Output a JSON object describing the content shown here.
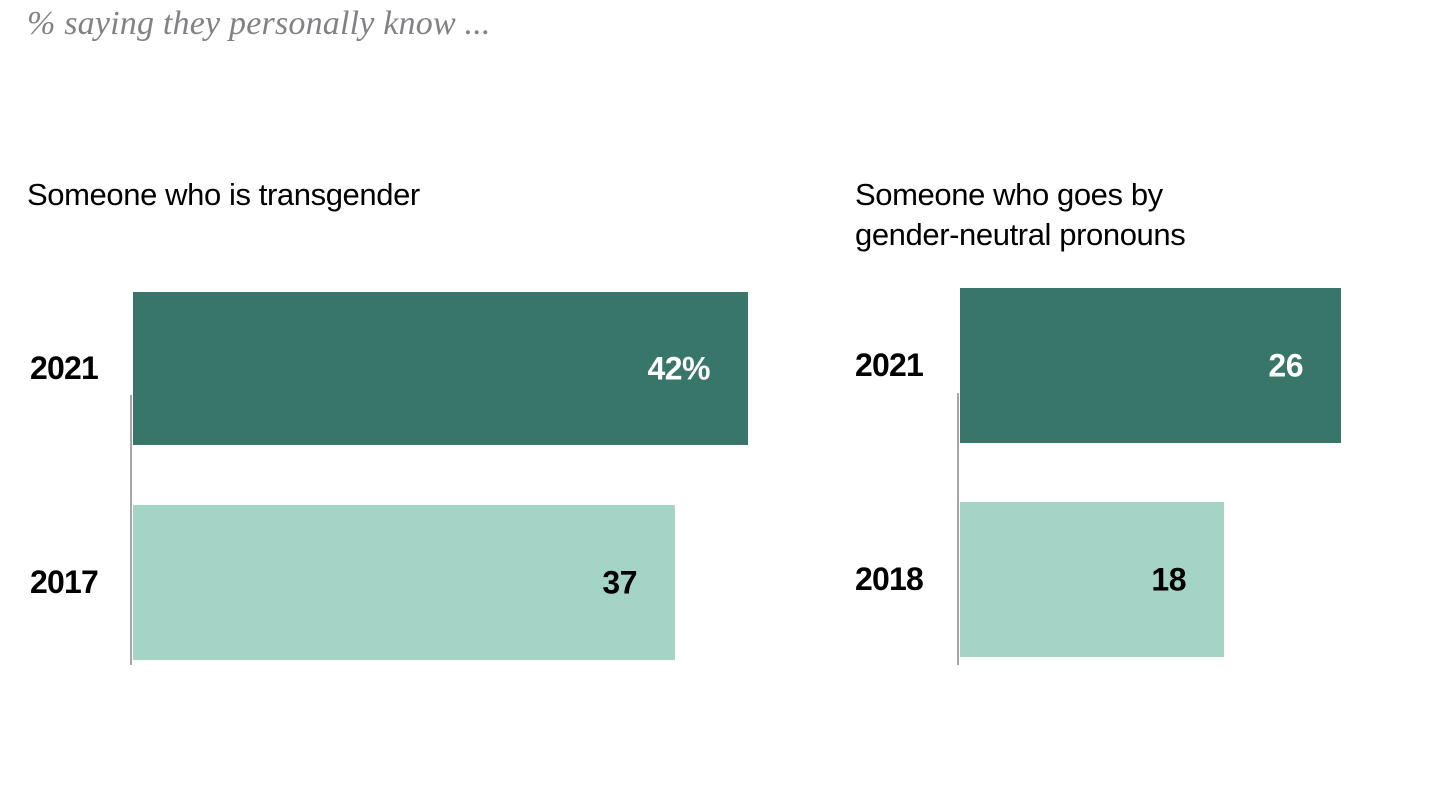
{
  "title": "% saying they personally know ...",
  "colors": {
    "bar_dark": "#39766a",
    "bar_light": "#a3d4c6",
    "axis_line": "#a6a6a6",
    "title_gray": "#808285",
    "heading_black": "#000000",
    "value_on_dark": "#ffffff",
    "value_on_light": "#000000"
  },
  "charts": [
    {
      "heading_lines": [
        "Someone who is transgender"
      ],
      "rows": [
        {
          "year": "2021",
          "value": 42,
          "value_label": "42%",
          "shade": "dark"
        },
        {
          "year": "2017",
          "value": 37,
          "value_label": "37",
          "shade": "light"
        }
      ]
    },
    {
      "heading_lines": [
        "Someone who goes by",
        "gender-neutral pronouns"
      ],
      "rows": [
        {
          "year": "2021",
          "value": 26,
          "value_label": "26",
          "shade": "dark"
        },
        {
          "year": "2018",
          "value": 18,
          "value_label": "18",
          "shade": "light"
        }
      ]
    }
  ],
  "chart_data": [
    {
      "type": "bar",
      "orientation": "horizontal",
      "title": "Someone who is transgender",
      "categories": [
        "2021",
        "2017"
      ],
      "values": [
        42,
        37
      ],
      "value_labels": [
        "42%",
        "37"
      ],
      "xlim": [
        0,
        42
      ],
      "grid": false,
      "legend": false,
      "bar_colors": [
        "#39766a",
        "#a3d4c6"
      ]
    },
    {
      "type": "bar",
      "orientation": "horizontal",
      "title": "Someone who goes by gender-neutral pronouns",
      "categories": [
        "2021",
        "2018"
      ],
      "values": [
        26,
        18
      ],
      "value_labels": [
        "26",
        "18"
      ],
      "xlim": [
        0,
        42
      ],
      "grid": false,
      "legend": false,
      "bar_colors": [
        "#39766a",
        "#a3d4c6"
      ]
    }
  ]
}
